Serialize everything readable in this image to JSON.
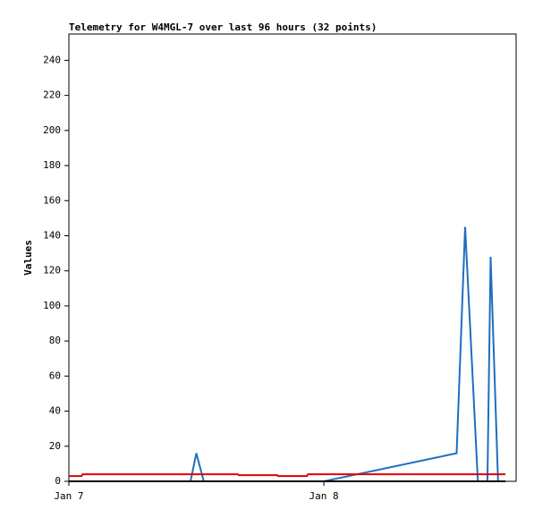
{
  "chart_data": {
    "type": "line",
    "title": "Telemetry for W4MGL-7 over last 96 hours (32 points)",
    "ylabel": "Values",
    "xlim": [
      0,
      42.1
    ],
    "xticks": [
      {
        "value": 0,
        "label": "Jan 7"
      },
      {
        "value": 24,
        "label": "Jan 8"
      }
    ],
    "ylim": [
      0,
      255
    ],
    "yticks": [
      0,
      20,
      40,
      60,
      80,
      100,
      120,
      140,
      160,
      180,
      200,
      220,
      240
    ],
    "series": [
      {
        "color": "#1f6fbf",
        "x": [
          0,
          11.45,
          12,
          12.7,
          24,
          36.5,
          37.3,
          38.5,
          39.4,
          39.7,
          40.4
        ],
        "values": [
          0,
          0,
          16,
          0,
          0,
          16,
          145,
          0,
          0,
          128,
          0
        ]
      },
      {
        "color": "#000000",
        "x": [
          0,
          41.1
        ],
        "values": [
          0,
          0
        ]
      },
      {
        "color": "#e00000",
        "x": [
          0,
          1.2,
          1.3,
          15.9,
          16,
          19.6,
          19.7,
          22.4,
          22.5,
          41.1
        ],
        "values": [
          3,
          3,
          4,
          4,
          3.5,
          3.5,
          3,
          3,
          4,
          4
        ]
      }
    ]
  }
}
